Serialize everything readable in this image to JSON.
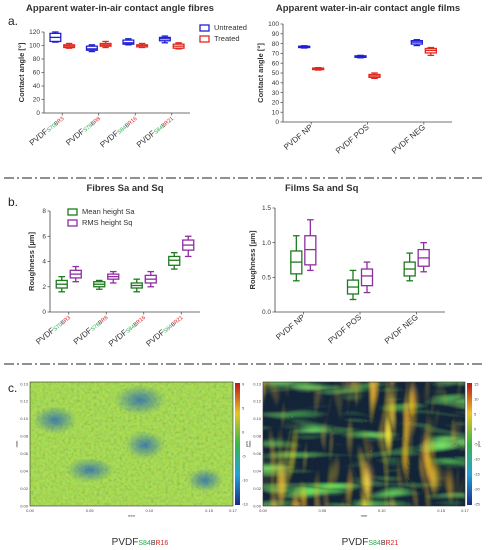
{
  "panels": {
    "a": "a.",
    "b": "b.",
    "c": "c."
  },
  "colors": {
    "untreated": "#1f1fd6",
    "treated": "#e0281e",
    "sa": "#1e7a1e",
    "sq": "#8e2ea0",
    "green_fiber_text": "#22aa44",
    "red_fiber_text": "#dd2222",
    "axis": "#444444"
  },
  "chart_data": [
    {
      "id": "fibres_ca",
      "type": "box",
      "title": "Apparent water-in-air contact angle fibres",
      "ylabel": "Contact angle [°]",
      "ylim": [
        0,
        120
      ],
      "yticks": [
        0,
        20,
        40,
        60,
        80,
        100,
        120
      ],
      "categories": [
        {
          "prefix": "PVDF",
          "green": "S70",
          "mid": "B",
          "red": "R3"
        },
        {
          "prefix": "PVDF",
          "green": "S78",
          "mid": "B",
          "red": "R8"
        },
        {
          "prefix": "PVDF",
          "green": "S84",
          "mid": "B",
          "red": "R16"
        },
        {
          "prefix": "PVDF",
          "green": "S84",
          "mid": "B",
          "red": "R21"
        }
      ],
      "legend": [
        "Untreated",
        "Treated"
      ],
      "series": [
        {
          "name": "Untreated",
          "color": "#1f1fd6",
          "boxes": [
            {
              "min": 105,
              "q1": 106,
              "med": 112,
              "q3": 118,
              "max": 120
            },
            {
              "min": 91,
              "q1": 93,
              "med": 95,
              "q3": 99,
              "max": 101
            },
            {
              "min": 101,
              "q1": 102,
              "med": 104,
              "q3": 108,
              "max": 110
            },
            {
              "min": 104,
              "q1": 107,
              "med": 110,
              "q3": 112,
              "max": 114
            }
          ]
        },
        {
          "name": "Treated",
          "color": "#e0281e",
          "boxes": [
            {
              "min": 96,
              "q1": 97,
              "med": 99,
              "q3": 101,
              "max": 103
            },
            {
              "min": 97,
              "q1": 99,
              "med": 101,
              "q3": 103,
              "max": 106
            },
            {
              "min": 97,
              "q1": 98,
              "med": 100,
              "q3": 101,
              "max": 103
            },
            {
              "min": 95,
              "q1": 96,
              "med": 99,
              "q3": 102,
              "max": 104
            }
          ]
        }
      ]
    },
    {
      "id": "films_ca",
      "type": "box",
      "title": "Apparent water-in-air contact angle films",
      "ylabel": "Contact angle [°]",
      "ylim": [
        0,
        100
      ],
      "yticks": [
        0,
        10,
        20,
        30,
        40,
        50,
        60,
        70,
        80,
        90,
        100
      ],
      "categories": [
        "PVDF NP",
        "PVDF POS",
        "PVDF NEG"
      ],
      "series": [
        {
          "name": "Untreated",
          "color": "#1f1fd6",
          "boxes": [
            {
              "min": 75.5,
              "q1": 76,
              "med": 76.7,
              "q3": 77.3,
              "max": 77.8
            },
            {
              "min": 65.5,
              "q1": 66,
              "med": 66.8,
              "q3": 67.5,
              "max": 68
            },
            {
              "min": 78,
              "q1": 79.5,
              "med": 81.5,
              "q3": 83,
              "max": 84
            }
          ]
        },
        {
          "name": "Treated",
          "color": "#e0281e",
          "boxes": [
            {
              "min": 53,
              "q1": 53.5,
              "med": 54.2,
              "q3": 55,
              "max": 55.5
            },
            {
              "min": 44.5,
              "q1": 45.5,
              "med": 47,
              "q3": 48.5,
              "max": 50
            },
            {
              "min": 68,
              "q1": 70.5,
              "med": 73,
              "q3": 75,
              "max": 76
            }
          ]
        }
      ]
    },
    {
      "id": "fibres_sa_sq",
      "type": "box",
      "title": "Fibres Sa and Sq",
      "ylabel": "Roughness [µm]",
      "ylim": [
        0,
        8
      ],
      "yticks": [
        0,
        2,
        4,
        6,
        8
      ],
      "categories": [
        {
          "prefix": "PVDF",
          "green": "S70",
          "mid": "B",
          "red": "R3"
        },
        {
          "prefix": "PVDF",
          "green": "S78",
          "mid": "B",
          "red": "R8"
        },
        {
          "prefix": "PVDF",
          "green": "S84",
          "mid": "B",
          "red": "R16"
        },
        {
          "prefix": "PVDF",
          "green": "S84",
          "mid": "B",
          "red": "R21"
        }
      ],
      "legend": [
        "Mean height Sa",
        "RMS height Sq"
      ],
      "series": [
        {
          "name": "Mean height Sa",
          "color": "#1e7a1e",
          "boxes": [
            {
              "min": 1.6,
              "q1": 1.9,
              "med": 2.2,
              "q3": 2.5,
              "max": 2.8
            },
            {
              "min": 1.8,
              "q1": 2.0,
              "med": 2.2,
              "q3": 2.4,
              "max": 2.5
            },
            {
              "min": 1.6,
              "q1": 1.9,
              "med": 2.1,
              "q3": 2.3,
              "max": 2.6
            },
            {
              "min": 3.4,
              "q1": 3.7,
              "med": 4.1,
              "q3": 4.4,
              "max": 4.7
            }
          ]
        },
        {
          "name": "RMS height Sq",
          "color": "#8e2ea0",
          "boxes": [
            {
              "min": 2.4,
              "q1": 2.7,
              "med": 3.0,
              "q3": 3.3,
              "max": 3.6
            },
            {
              "min": 2.3,
              "q1": 2.6,
              "med": 2.8,
              "q3": 3.0,
              "max": 3.2
            },
            {
              "min": 2.0,
              "q1": 2.3,
              "med": 2.6,
              "q3": 2.9,
              "max": 3.2
            },
            {
              "min": 4.4,
              "q1": 4.9,
              "med": 5.3,
              "q3": 5.7,
              "max": 6.0
            }
          ]
        }
      ]
    },
    {
      "id": "films_sa_sq",
      "type": "box",
      "title": "Films Sa and Sq",
      "ylabel": "Roughness [µm]",
      "ylim": [
        0,
        1.5
      ],
      "yticks": [
        0.0,
        0.5,
        1.0,
        1.5
      ],
      "categories": [
        "PVDF NP",
        "PVDF POS",
        "PVDF NEG"
      ],
      "series": [
        {
          "name": "Mean height Sa",
          "color": "#1e7a1e",
          "boxes": [
            {
              "min": 0.45,
              "q1": 0.55,
              "med": 0.72,
              "q3": 0.88,
              "max": 1.1
            },
            {
              "min": 0.18,
              "q1": 0.26,
              "med": 0.36,
              "q3": 0.46,
              "max": 0.6
            },
            {
              "min": 0.45,
              "q1": 0.52,
              "med": 0.62,
              "q3": 0.72,
              "max": 0.85
            }
          ]
        },
        {
          "name": "RMS height Sq",
          "color": "#8e2ea0",
          "boxes": [
            {
              "min": 0.6,
              "q1": 0.68,
              "med": 0.9,
              "q3": 1.1,
              "max": 1.33
            },
            {
              "min": 0.28,
              "q1": 0.38,
              "med": 0.52,
              "q3": 0.62,
              "max": 0.72
            },
            {
              "min": 0.58,
              "q1": 0.66,
              "med": 0.78,
              "q3": 0.9,
              "max": 1.0
            }
          ]
        }
      ]
    }
  ],
  "maps": [
    {
      "caption": {
        "prefix": "PVDF",
        "green": "S84",
        "mid": "B",
        "red": "R16"
      },
      "xticks": [
        "0.00",
        "0.05",
        "0.10",
        "0.15",
        "0.17"
      ],
      "yticks": [
        "0.13",
        "0.12",
        "0.10",
        "0.08",
        "0.06",
        "0.04",
        "0.02",
        "0.00"
      ],
      "cbar": [
        "9",
        "5",
        "0",
        "-5",
        "-10",
        "-13"
      ],
      "xunit": "mm",
      "yunit": "mm",
      "cunit": "µm"
    },
    {
      "caption": {
        "prefix": "PVDF",
        "green": "S84",
        "mid": "B",
        "red": "R21"
      },
      "xticks": [
        "0.00",
        "0.05",
        "0.10",
        "0.15",
        "0.17"
      ],
      "yticks": [
        "0.13",
        "0.12",
        "0.10",
        "0.08",
        "0.06",
        "0.04",
        "0.02",
        "0.00"
      ],
      "cbar": [
        "15",
        "10",
        "5",
        "0",
        "-5",
        "-10",
        "-15",
        "-20",
        "-25"
      ],
      "xunit": "mm",
      "yunit": "mm",
      "cunit": "µm"
    }
  ]
}
